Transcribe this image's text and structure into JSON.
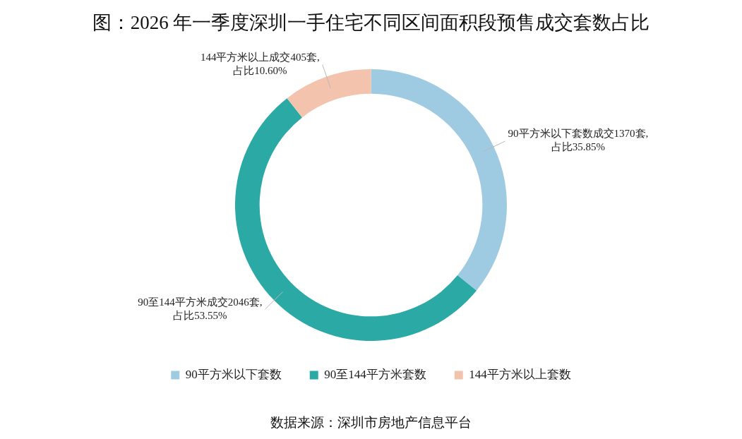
{
  "chart_data": {
    "type": "donut",
    "title": "图：2026 年一季度深圳一手住宅不同区间面积段预售成交套数占比",
    "categories": [
      "90平方米以下套数",
      "90至144平方米套数",
      "144平方米以上套数"
    ],
    "values": [
      1370,
      2046,
      405
    ],
    "colors": [
      "#9fcbe2",
      "#2ba9a5",
      "#f3c3ae"
    ],
    "value_labels": [
      "90平方米以下套数成交1370套,\n占比35.85%",
      "90至144平方米成交2046套,\n占比53.55%",
      "144平方米以上成交405套,\n占比10.60%"
    ],
    "legend": "bottom",
    "annotations": [
      "数据来源：深圳市房地产信息平台"
    ]
  }
}
